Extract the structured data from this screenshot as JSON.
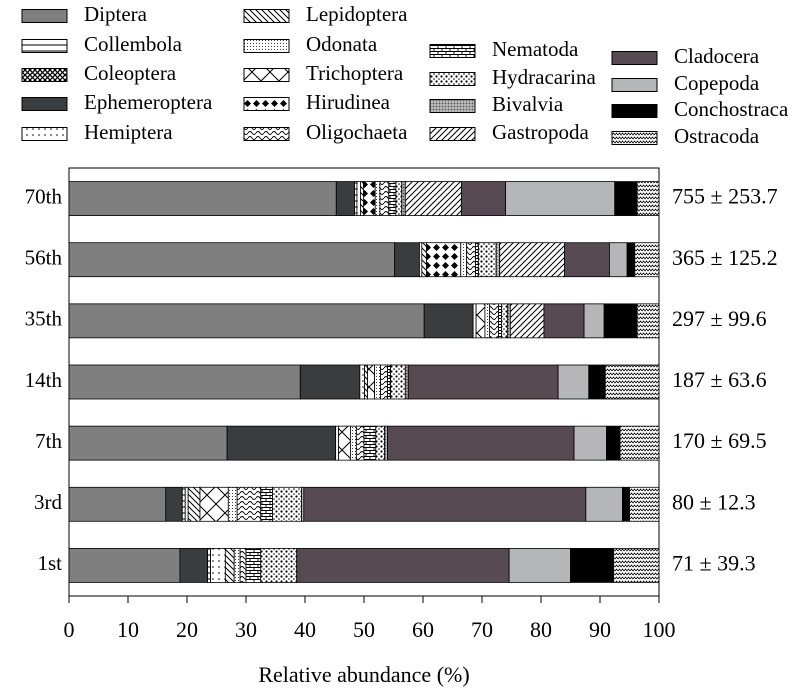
{
  "chart_data": {
    "type": "stacked-hbar",
    "x_label": "Relative abundance (%)",
    "categories": [
      "70th",
      "56th",
      "35th",
      "14th",
      "7th",
      "3rd",
      "1st"
    ],
    "totals": [
      "755 ± 253.7",
      "365 ± 125.2",
      "297 ± 99.6",
      "187 ± 63.6",
      "170 ± 69.5",
      "80 ± 12.3",
      "71 ± 39.3"
    ],
    "xlim": [
      0,
      100
    ],
    "xticks": [
      0,
      10,
      20,
      30,
      40,
      50,
      60,
      70,
      80,
      90,
      100
    ],
    "series": [
      {
        "name": "Diptera",
        "color": "#7f7f7f",
        "pattern": "solid",
        "values": [
          45.3,
          55.2,
          60.2,
          39.2,
          26.8,
          16.4,
          18.8
        ]
      },
      {
        "name": "Ephemeroptera",
        "color": "#3a3d40",
        "pattern": "solid",
        "values": [
          3.1,
          4.2,
          8.3,
          10.1,
          18.4,
          2.8,
          4.7
        ]
      },
      {
        "name": "Collembola",
        "color": "#000000",
        "pattern": "hlines",
        "values": [
          0.4,
          0,
          0,
          0,
          0,
          0.5,
          0.5
        ]
      },
      {
        "name": "Hemiptera",
        "color": "#000000",
        "pattern": "dots",
        "values": [
          0.6,
          0.4,
          0.5,
          0.8,
          0.5,
          0.5,
          2.5
        ]
      },
      {
        "name": "Lepidoptera",
        "color": "#000000",
        "pattern": "diag-back",
        "values": [
          0.5,
          0.8,
          0,
          0.5,
          0,
          2.0,
          1.5
        ]
      },
      {
        "name": "Coleoptera",
        "color": "#000000",
        "pattern": "crosshatch",
        "values": [
          0,
          0,
          0,
          0,
          0,
          0,
          0
        ]
      },
      {
        "name": "Trichoptera",
        "color": "#000000",
        "pattern": "big-x",
        "values": [
          0,
          0,
          1.5,
          1.2,
          2.0,
          4.8,
          0
        ]
      },
      {
        "name": "Hirudinea",
        "color": "#000000",
        "pattern": "diamonds",
        "values": [
          2.0,
          5.8,
          0,
          0,
          0,
          0,
          0
        ]
      },
      {
        "name": "Odonata",
        "color": "#000000",
        "pattern": "fine-dots",
        "values": [
          0.8,
          1.0,
          0.8,
          1.0,
          1.0,
          1.5,
          1.0
        ]
      },
      {
        "name": "Oligochaeta",
        "color": "#000000",
        "pattern": "waves",
        "values": [
          1.5,
          1.5,
          1.5,
          1.2,
          1.3,
          4.0,
          1.0
        ]
      },
      {
        "name": "Nematoda",
        "color": "#000000",
        "pattern": "bricks",
        "values": [
          1.2,
          0.5,
          0.5,
          0.5,
          2.0,
          2.0,
          2.5
        ]
      },
      {
        "name": "Hydracarina",
        "color": "#000000",
        "pattern": "bold-dots",
        "values": [
          1.0,
          3.0,
          1.0,
          2.5,
          1.5,
          4.9,
          6.1
        ]
      },
      {
        "name": "Bivalvia",
        "color": "#555555",
        "pattern": "dense",
        "values": [
          0.6,
          0.6,
          0.5,
          0.5,
          0.5,
          0.4,
          0
        ]
      },
      {
        "name": "Gastropoda",
        "color": "#000000",
        "pattern": "diag",
        "values": [
          9.5,
          11.0,
          5.7,
          0,
          0,
          0,
          0
        ]
      },
      {
        "name": "Cladocera",
        "color": "#574a52",
        "pattern": "solid",
        "values": [
          7.5,
          7.6,
          6.8,
          25.4,
          31.6,
          47.8,
          36.0
        ]
      },
      {
        "name": "Copepoda",
        "color": "#b5b6b8",
        "pattern": "solid",
        "values": [
          18.5,
          3.0,
          3.4,
          5.2,
          5.5,
          6.2,
          10.4
        ]
      },
      {
        "name": "Conchostraca",
        "color": "#000000",
        "pattern": "solid",
        "values": [
          3.8,
          1.3,
          5.6,
          2.8,
          2.3,
          1.2,
          7.3
        ]
      },
      {
        "name": "Ostracoda",
        "color": "#000000",
        "pattern": "zigzag",
        "values": [
          3.7,
          4.1,
          3.7,
          9.1,
          6.6,
          5.0,
          7.7
        ]
      }
    ]
  }
}
